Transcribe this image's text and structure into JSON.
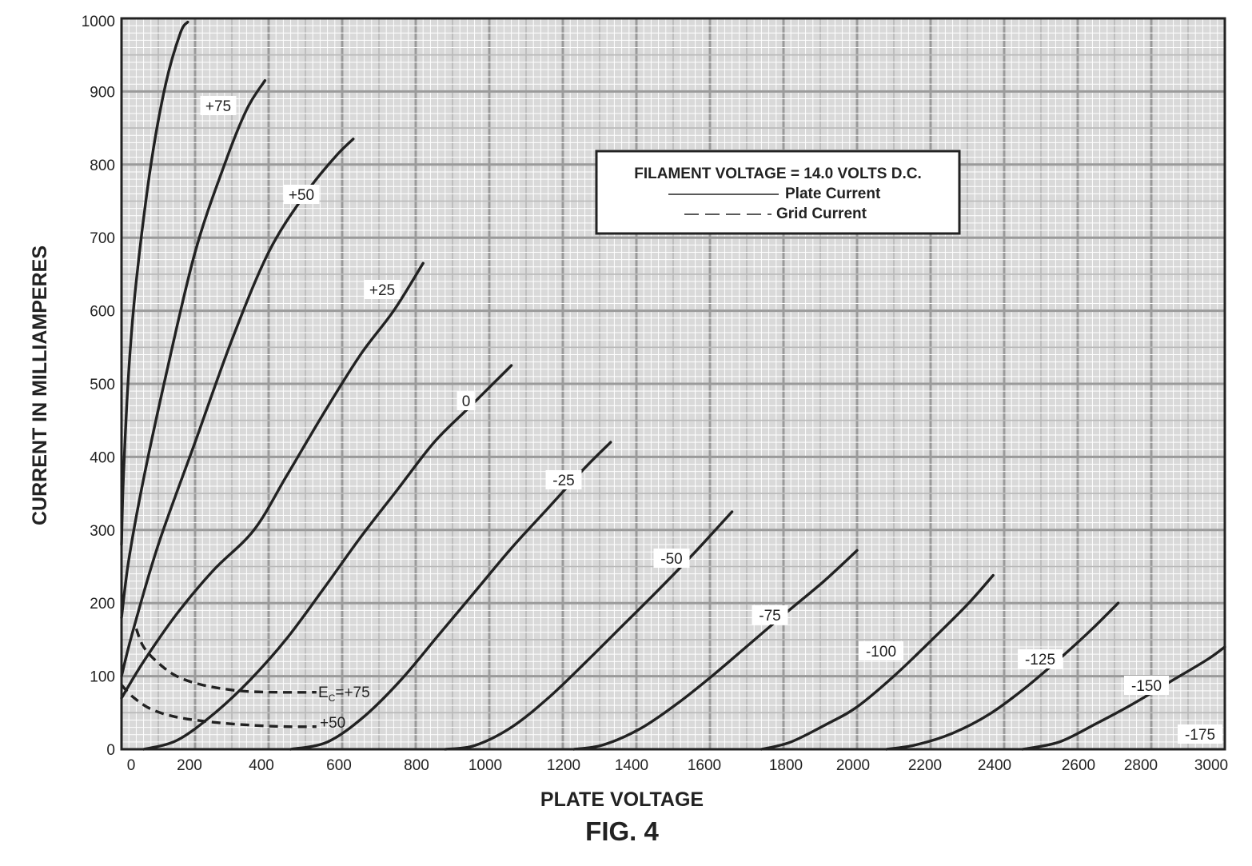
{
  "chart_data": {
    "type": "line",
    "xlabel": "PLATE VOLTAGE",
    "ylabel": "CURRENT IN MILLIAMPERES",
    "caption": "FIG. 4",
    "xlim": [
      0,
      3000
    ],
    "ylim": [
      0,
      1000
    ],
    "x_ticks": [
      "0",
      "200",
      "400",
      "600",
      "800",
      "1000",
      "1200",
      "1400",
      "1600",
      "1800",
      "2000",
      "2200",
      "2400",
      "2600",
      "2800",
      "3000"
    ],
    "y_ticks": [
      "0",
      "100",
      "200",
      "300",
      "400",
      "500",
      "600",
      "700",
      "800",
      "900",
      "1000"
    ],
    "grid": true,
    "legend": {
      "placement": "top-right",
      "title": "FILAMENT VOLTAGE = 14.0 VOLTS D.C.",
      "entries": [
        {
          "label": "Plate Current",
          "style": "solid"
        },
        {
          "label": "Grid Current",
          "style": "dashed"
        }
      ]
    },
    "plate_current": [
      {
        "label": "",
        "x": [
          0,
          5,
          20,
          40,
          80,
          120,
          160,
          180
        ],
        "y": [
          280,
          370,
          520,
          640,
          800,
          910,
          980,
          995
        ]
      },
      {
        "label": "+75",
        "x": [
          0,
          20,
          60,
          120,
          200,
          280,
          340,
          390
        ],
        "y": [
          180,
          260,
          370,
          510,
          680,
          800,
          875,
          915
        ]
      },
      {
        "label": "+50",
        "x": [
          0,
          30,
          100,
          200,
          300,
          400,
          500,
          580,
          630
        ],
        "y": [
          100,
          160,
          280,
          420,
          560,
          680,
          760,
          810,
          835
        ]
      },
      {
        "label": "+25",
        "x": [
          0,
          60,
          150,
          250,
          360,
          450,
          550,
          650,
          740,
          820
        ],
        "y": [
          70,
          120,
          185,
          245,
          300,
          375,
          460,
          540,
          600,
          665
        ]
      },
      {
        "label": "0",
        "x": [
          60,
          150,
          250,
          350,
          450,
          550,
          650,
          750,
          850,
          950,
          1060
        ],
        "y": [
          0,
          12,
          48,
          95,
          152,
          220,
          290,
          355,
          420,
          470,
          525
        ]
      },
      {
        "label": "-25",
        "x": [
          460,
          560,
          660,
          760,
          860,
          960,
          1060,
          1160,
          1260,
          1330
        ],
        "y": [
          0,
          10,
          45,
          95,
          155,
          215,
          275,
          330,
          385,
          420
        ]
      },
      {
        "label": "-50",
        "x": [
          880,
          960,
          1060,
          1160,
          1260,
          1360,
          1460,
          1560,
          1660
        ],
        "y": [
          0,
          5,
          30,
          70,
          118,
          168,
          218,
          270,
          325
        ]
      },
      {
        "label": "-75",
        "x": [
          1230,
          1310,
          1410,
          1510,
          1610,
          1710,
          1810,
          1910,
          2000
        ],
        "y": [
          0,
          6,
          28,
          62,
          102,
          145,
          188,
          230,
          272
        ]
      },
      {
        "label": "-100",
        "x": [
          1740,
          1820,
          1920,
          2000,
          2100,
          2200,
          2300,
          2370
        ],
        "y": [
          0,
          10,
          35,
          58,
          100,
          148,
          198,
          238
        ]
      },
      {
        "label": "-125",
        "x": [
          2080,
          2160,
          2260,
          2360,
          2460,
          2560,
          2640,
          2710
        ],
        "y": [
          0,
          6,
          22,
          48,
          85,
          128,
          165,
          200
        ]
      },
      {
        "label": "-150",
        "x": [
          2450,
          2550,
          2650,
          2750,
          2850,
          2950,
          3000
        ],
        "y": [
          0,
          10,
          35,
          62,
          92,
          122,
          140
        ]
      },
      {
        "label": "-175",
        "x": [],
        "y": []
      }
    ],
    "grid_current": [
      {
        "label": "E_C=+75",
        "x": [
          40,
          60,
          100,
          150,
          220,
          320,
          420,
          530
        ],
        "y": [
          165,
          140,
          118,
          100,
          88,
          80,
          78,
          78
        ]
      },
      {
        "label": "+50",
        "x": [
          0,
          30,
          80,
          150,
          250,
          350,
          450,
          530
        ],
        "y": [
          88,
          72,
          55,
          44,
          37,
          33,
          31,
          31
        ]
      }
    ],
    "annotations": [
      "+75",
      "+50",
      "+25",
      "0",
      "-25",
      "-50",
      "-75",
      "-100",
      "-125",
      "-150",
      "-175"
    ]
  }
}
